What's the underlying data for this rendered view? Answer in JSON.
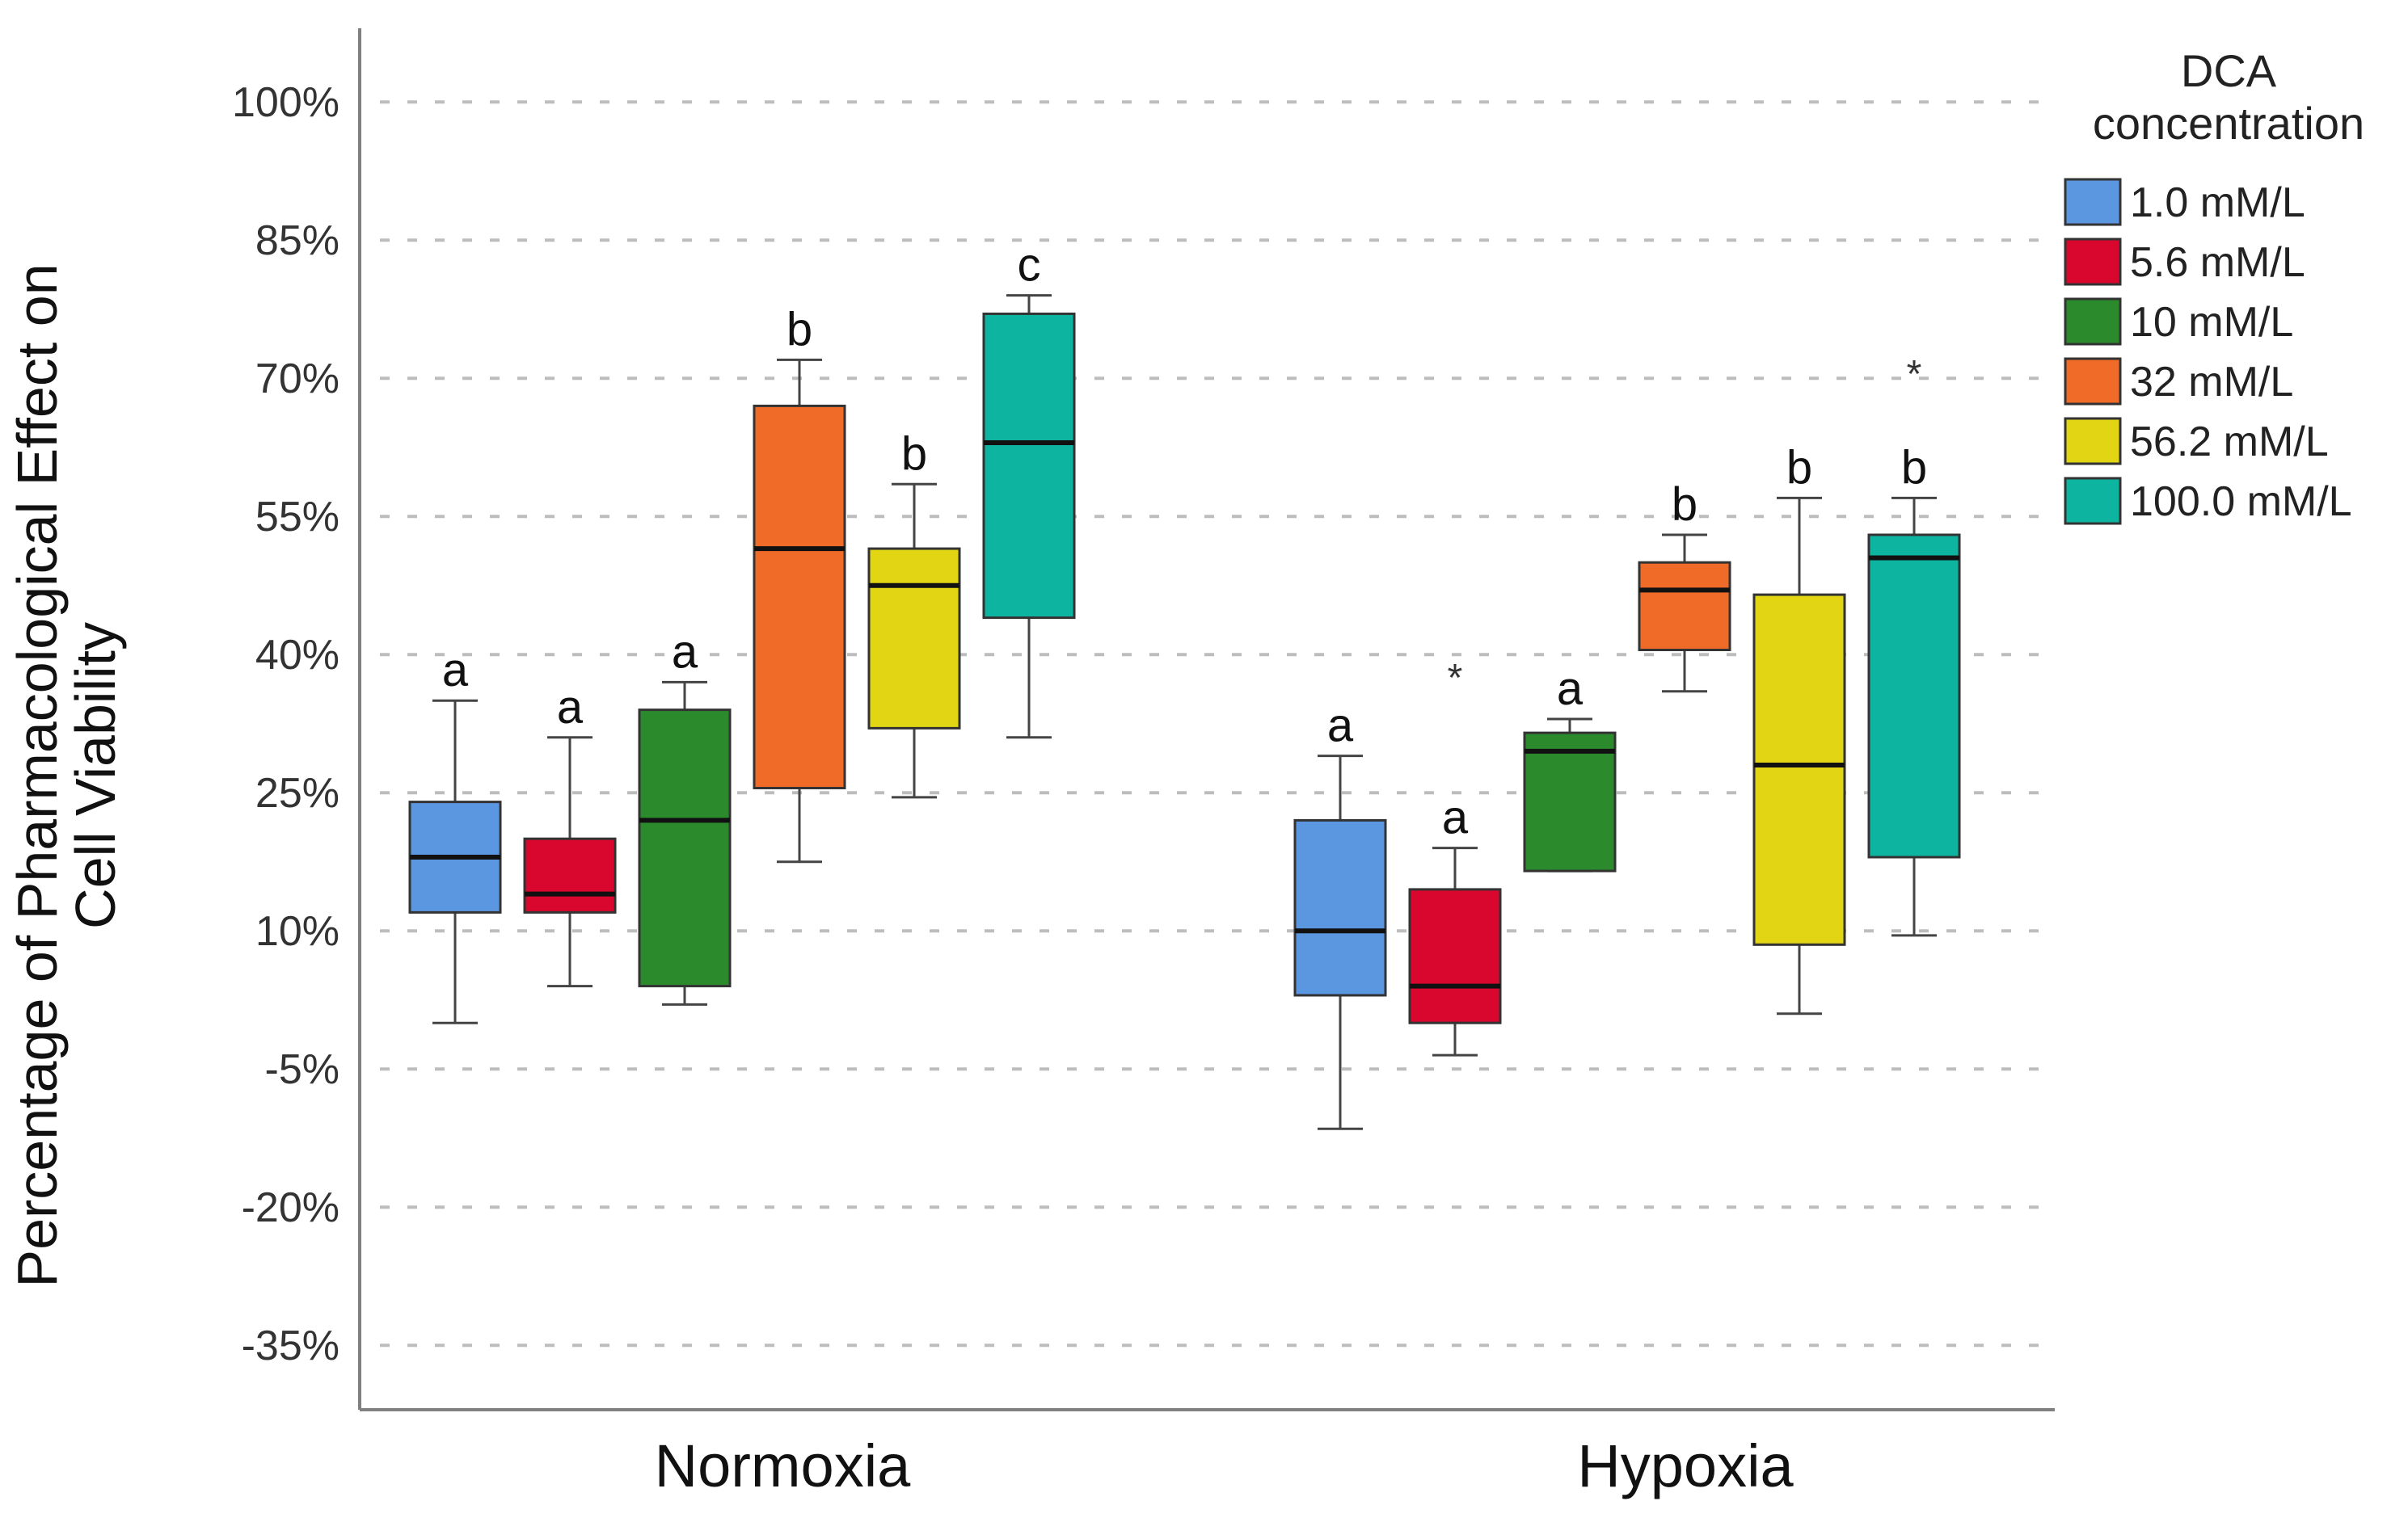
{
  "chart_data": {
    "type": "boxplot",
    "title": "",
    "xlabel": "",
    "ylabel_lines": [
      "Percentage of Pharmacological Effect on",
      "Cell Viability"
    ],
    "ylim": [
      -42,
      108
    ],
    "yticks": [
      -35,
      -20,
      -5,
      10,
      25,
      40,
      55,
      70,
      85,
      100
    ],
    "ytick_labels": [
      "-35%",
      "-20%",
      "-5%",
      "10%",
      "25%",
      "40%",
      "55%",
      "70%",
      "85%",
      "100%"
    ],
    "grid": "horizontal dashed",
    "groups": [
      "Normoxia",
      "Hypoxia"
    ],
    "legend": {
      "title_lines": [
        "DCA",
        "concentration"
      ],
      "position": "top-right",
      "entries": [
        {
          "name": "1.0 mM/L",
          "color": "#5a97e0"
        },
        {
          "name": "5.6 mM/L",
          "color": "#d9062e"
        },
        {
          "name": "10 mM/L",
          "color": "#2b8a2b"
        },
        {
          "name": "32 mM/L",
          "color": "#f06b28"
        },
        {
          "name": "56.2 mM/L",
          "color": "#e2d514"
        },
        {
          "name": "100.0 mM/L",
          "color": "#0db5a0"
        }
      ]
    },
    "boxes": [
      {
        "group": "Normoxia",
        "series": "1.0 mM/L",
        "min": 0,
        "q1": 12,
        "median": 18,
        "q3": 24,
        "max": 35,
        "letter": "a"
      },
      {
        "group": "Normoxia",
        "series": "5.6 mM/L",
        "min": 4,
        "q1": 12,
        "median": 14,
        "q3": 20,
        "max": 31,
        "letter": "a"
      },
      {
        "group": "Normoxia",
        "series": "10 mM/L",
        "min": 2,
        "q1": 4,
        "median": 22,
        "q3": 34,
        "max": 37,
        "letter": "a"
      },
      {
        "group": "Normoxia",
        "series": "32 mM/L",
        "min": 17.5,
        "q1": 25.5,
        "median": 51.5,
        "q3": 67,
        "max": 72,
        "letter": "b"
      },
      {
        "group": "Normoxia",
        "series": "56.2 mM/L",
        "min": 24.5,
        "q1": 32,
        "median": 47.5,
        "q3": 51.5,
        "max": 58.5,
        "letter": "b"
      },
      {
        "group": "Normoxia",
        "series": "100.0 mM/L",
        "min": 31,
        "q1": 44,
        "median": 63,
        "q3": 77,
        "max": 79,
        "letter": "c"
      },
      {
        "group": "Hypoxia",
        "series": "1.0 mM/L",
        "min": -11.5,
        "q1": 3,
        "median": 10,
        "q3": 22,
        "max": 29,
        "letter": "a"
      },
      {
        "group": "Hypoxia",
        "series": "5.6 mM/L",
        "min": -3.5,
        "q1": 0,
        "median": 4,
        "q3": 14.5,
        "max": 19,
        "letter": "a",
        "outlier_mark": "*",
        "outlier_value": 38
      },
      {
        "group": "Hypoxia",
        "series": "10 mM/L",
        "min": 16.5,
        "q1": 16.5,
        "median": 29.5,
        "q3": 31.5,
        "max": 33,
        "letter": "a"
      },
      {
        "group": "Hypoxia",
        "series": "32 mM/L",
        "min": 36,
        "q1": 40.5,
        "median": 47,
        "q3": 50,
        "max": 53,
        "letter": "b"
      },
      {
        "group": "Hypoxia",
        "series": "56.2 mM/L",
        "min": 1,
        "q1": 8.5,
        "median": 28,
        "q3": 46.5,
        "max": 57,
        "letter": "b"
      },
      {
        "group": "Hypoxia",
        "series": "100.0 mM/L",
        "min": 9.5,
        "q1": 18,
        "median": 50.5,
        "q3": 53,
        "max": 57,
        "letter": "b",
        "outlier_mark": "*",
        "outlier_value": 71
      }
    ]
  }
}
